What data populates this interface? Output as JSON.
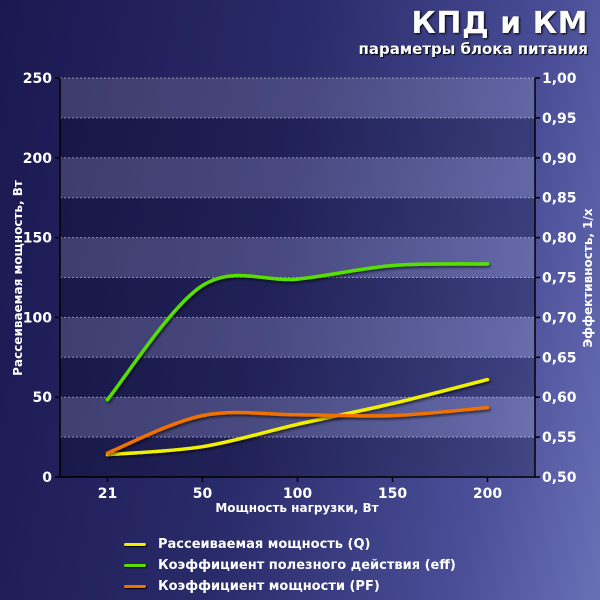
{
  "header": {
    "title": "КПД и КМ",
    "subtitle": "параметры блока питания"
  },
  "chart_data": {
    "type": "line",
    "categories": [
      "21",
      "50",
      "100",
      "150",
      "200"
    ],
    "xlabel": "Мощность нагрузки, Вт",
    "y_left": {
      "label": "Рассеиваемая мощность, Вт",
      "ticks": [
        "0",
        "50",
        "100",
        "150",
        "200",
        "250"
      ],
      "range": [
        0,
        250
      ]
    },
    "y_right": {
      "label": "Эффективность, 1/x",
      "ticks": [
        "0,50",
        "0,55",
        "0,60",
        "0,65",
        "0,70",
        "0,75",
        "0,80",
        "0,85",
        "0,90",
        "0,95",
        "1,00"
      ],
      "range": [
        0.5,
        1.0
      ]
    },
    "grid": "horizontal bands",
    "legend_position": "bottom",
    "series": [
      {
        "name": "Рассеиваемая мощность (Q)",
        "axis": "left",
        "color": "#f0f000",
        "values": [
          14,
          19,
          33,
          46,
          61
        ]
      },
      {
        "name": "Коэффициент полезного действия (eff)",
        "axis": "right",
        "color": "#55e000",
        "values": [
          0.597,
          0.74,
          0.748,
          0.765,
          0.767
        ]
      },
      {
        "name": "Коэффициент мощности (PF)",
        "axis": "right",
        "color": "#f07000",
        "values": [
          0.53,
          0.577,
          0.578,
          0.577,
          0.587
        ]
      }
    ]
  }
}
